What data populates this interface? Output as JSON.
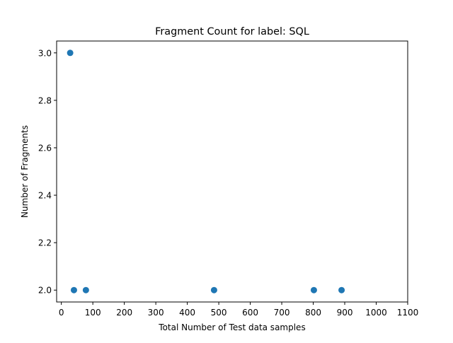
{
  "chart_data": {
    "type": "scatter",
    "title": "Fragment Count for label: SQL",
    "xlabel": "Total Number of Test data samples",
    "ylabel": "Number of Fragments",
    "xlim": [
      -15,
      1100
    ],
    "ylim": [
      1.95,
      3.05
    ],
    "xticks": [
      0,
      100,
      200,
      300,
      400,
      500,
      600,
      700,
      800,
      900,
      1000,
      1100
    ],
    "yticks": [
      2.0,
      2.2,
      2.4,
      2.6,
      2.8,
      3.0
    ],
    "xtick_labels": [
      "0",
      "100",
      "200",
      "300",
      "400",
      "500",
      "600",
      "700",
      "800",
      "900",
      "1000",
      "1100"
    ],
    "ytick_labels": [
      "2.0",
      "2.2",
      "2.4",
      "2.6",
      "2.8",
      "3.0"
    ],
    "grid": false,
    "marker_color": "#1f77b4",
    "points": [
      {
        "x": 28,
        "y": 3
      },
      {
        "x": 40,
        "y": 2
      },
      {
        "x": 78,
        "y": 2
      },
      {
        "x": 485,
        "y": 2
      },
      {
        "x": 802,
        "y": 2
      },
      {
        "x": 890,
        "y": 2
      }
    ]
  }
}
